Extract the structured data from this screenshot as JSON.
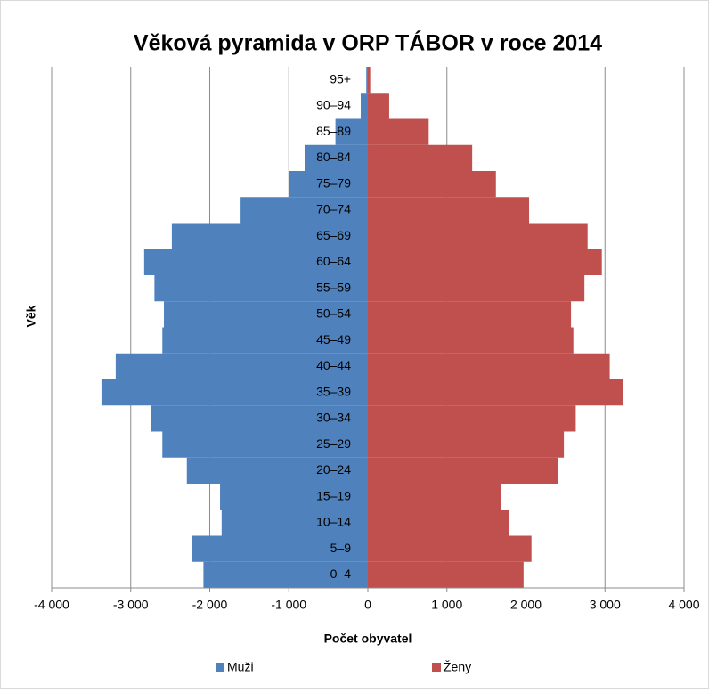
{
  "chart_data": {
    "type": "pyramid",
    "title": "Věková pyramida v ORP TÁBOR v roce 2014",
    "x_label": "Počet obyvatel",
    "y_label": "Věk",
    "categories": [
      "0–4",
      "5–9",
      "10–14",
      "15–19",
      "20–24",
      "25–29",
      "30–34",
      "35–39",
      "40–44",
      "45–49",
      "50–54",
      "55–59",
      "60–64",
      "65–69",
      "70–74",
      "75–79",
      "80–84",
      "85–89",
      "90–94",
      "95+"
    ],
    "series": [
      {
        "name": "Muži",
        "color": "#4f81bd",
        "values": [
          -2080,
          -2220,
          -1850,
          -1870,
          -2290,
          -2600,
          -2740,
          -3370,
          -3190,
          -2600,
          -2580,
          -2700,
          -2830,
          -2480,
          -1610,
          -1000,
          -800,
          -410,
          -90,
          -20
        ]
      },
      {
        "name": "Ženy",
        "color": "#c0504d",
        "values": [
          1970,
          2070,
          1790,
          1690,
          2400,
          2480,
          2630,
          3230,
          3060,
          2600,
          2570,
          2740,
          2960,
          2780,
          2040,
          1620,
          1320,
          770,
          270,
          30
        ]
      }
    ],
    "xlim": [
      -4000,
      4000
    ],
    "xticks": [
      {
        "value": -4000,
        "label": "-4 000"
      },
      {
        "value": -3000,
        "label": "-3 000"
      },
      {
        "value": -2000,
        "label": "-2 000"
      },
      {
        "value": -1000,
        "label": "-1 000"
      },
      0,
      {
        "value": 1000,
        "label": "1 000"
      },
      {
        "value": 2000,
        "label": "2 000"
      },
      {
        "value": 3000,
        "label": "3 000"
      },
      {
        "value": 4000,
        "label": "4 000"
      }
    ],
    "grid": true,
    "legend": "bottom"
  }
}
